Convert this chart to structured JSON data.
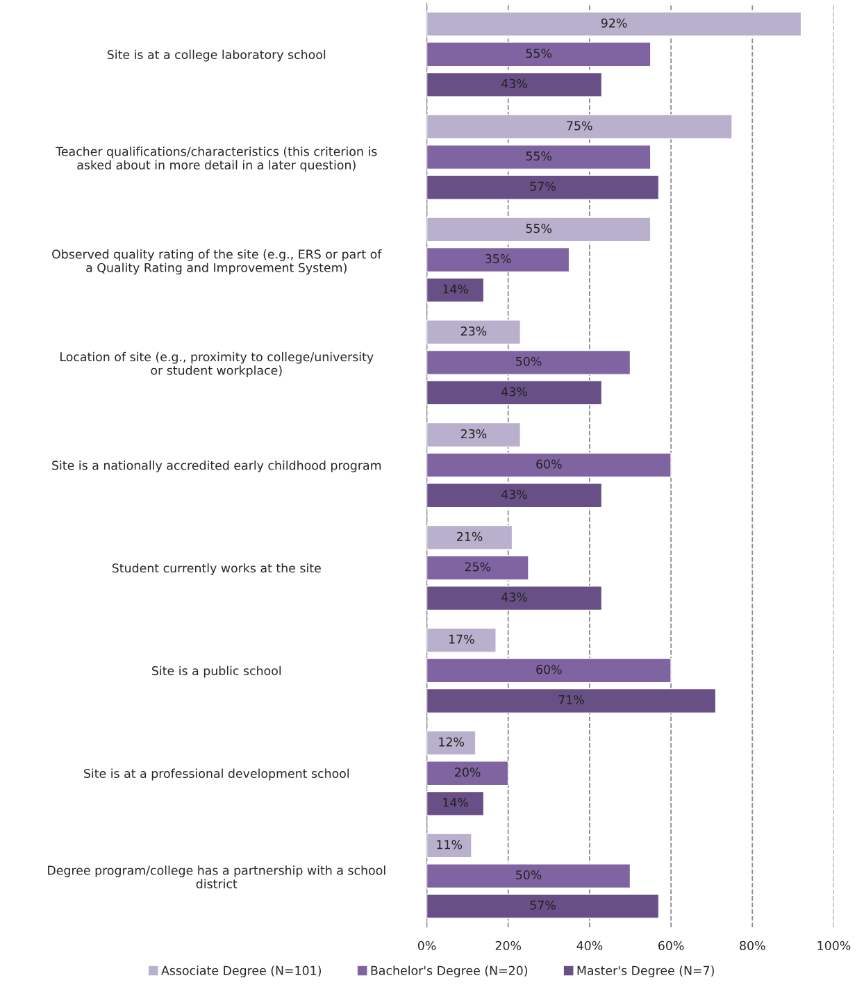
{
  "chart_data": {
    "type": "bar",
    "orientation": "horizontal",
    "categories": [
      "Site is at a college laboratory school",
      "Teacher qualifications/characteristics (this criterion is asked about in more detail in a later question)",
      "Observed quality rating of the site (e.g., ERS or part of a Quality Rating and Improvement System)",
      "Location of site (e.g., proximity to college/university or student workplace)",
      "Site is a nationally accredited early childhood program",
      "Student currently works at the site",
      "Site is a public school",
      "Site is at a professional development school",
      "Degree program/college has a partnership with a school district"
    ],
    "series": [
      {
        "name": "Associate Degree (N=101)",
        "color": "#b8b0cc",
        "values": [
          92,
          75,
          55,
          23,
          23,
          21,
          17,
          12,
          11
        ],
        "value_labels": [
          "92%",
          "75%",
          "55%",
          "23%",
          "23%",
          "21%",
          "17%",
          "12%",
          "11%"
        ]
      },
      {
        "name": "Bachelor's Degree (N=20)",
        "color": "#8064a2",
        "values": [
          55,
          55,
          35,
          50,
          60,
          25,
          60,
          20,
          50
        ],
        "value_labels": [
          "55%",
          "55%",
          "35%",
          "50%",
          "60%",
          "25%",
          "60%",
          "20%",
          "50%"
        ]
      },
      {
        "name": "Master's Degree (N=7)",
        "color": "#684f86",
        "values": [
          43,
          57,
          14,
          43,
          43,
          43,
          71,
          14,
          57
        ],
        "value_labels": [
          "43%",
          "57%",
          "14%",
          "43%",
          "43%",
          "43%",
          "71%",
          "14%",
          "57%"
        ]
      }
    ],
    "xlim": [
      0,
      100
    ],
    "xticks": [
      {
        "value": 0,
        "label": "0%"
      },
      {
        "value": 20,
        "label": "20%"
      },
      {
        "value": 40,
        "label": "40%"
      },
      {
        "value": 60,
        "label": "60%"
      },
      {
        "value": 80,
        "label": "80%"
      },
      {
        "value": 100,
        "label": "100%"
      }
    ],
    "grid": "x",
    "legend": "bottom"
  }
}
